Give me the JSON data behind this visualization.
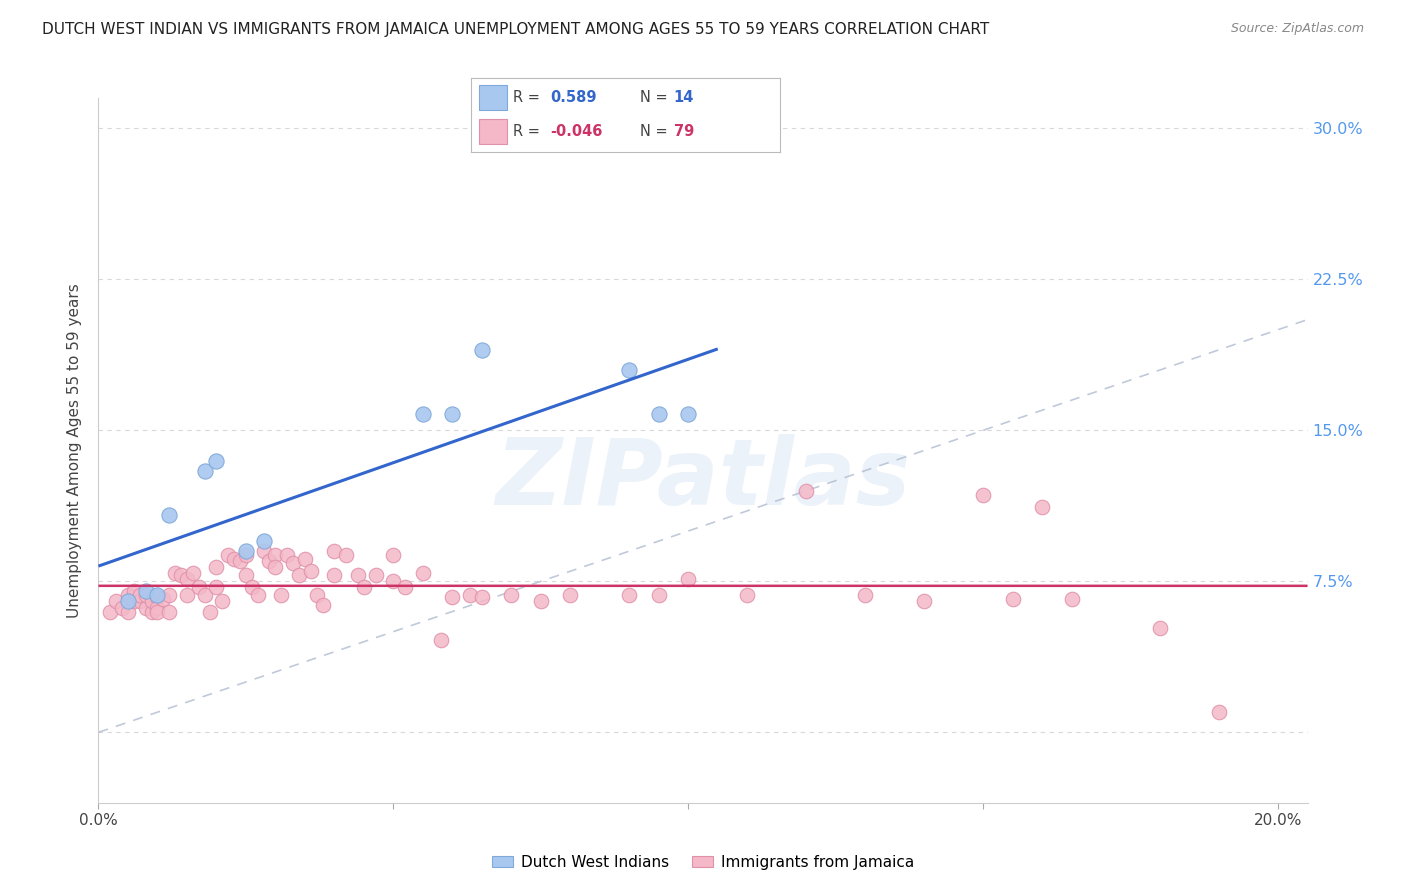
{
  "title": "DUTCH WEST INDIAN VS IMMIGRANTS FROM JAMAICA UNEMPLOYMENT AMONG AGES 55 TO 59 YEARS CORRELATION CHART",
  "source": "Source: ZipAtlas.com",
  "ylabel": "Unemployment Among Ages 55 to 59 years",
  "xlim": [
    0.0,
    0.205
  ],
  "ylim": [
    -0.035,
    0.315
  ],
  "yticks": [
    0.0,
    0.075,
    0.15,
    0.225,
    0.3
  ],
  "ytick_labels": [
    "",
    "7.5%",
    "15.0%",
    "22.5%",
    "30.0%"
  ],
  "xticks": [
    0.0,
    0.05,
    0.1,
    0.15,
    0.2
  ],
  "xtick_labels": [
    "0.0%",
    "",
    "",
    "",
    "20.0%"
  ],
  "blue_color": "#a8c8f0",
  "blue_edge": "#80a8d8",
  "blue_line_color": "#3366cc",
  "pink_color": "#f4b8c8",
  "pink_edge": "#e090a8",
  "pink_line_color": "#cc3366",
  "diag_color": "#b0bcd0",
  "bg_color": "#ffffff",
  "grid_color": "#d8d8d8",
  "right_label_color": "#5599ee",
  "blue_r": "0.589",
  "blue_n": "14",
  "pink_r": "-0.046",
  "pink_n": "79",
  "blue_x": [
    0.005,
    0.008,
    0.01,
    0.012,
    0.018,
    0.02,
    0.025,
    0.028,
    0.055,
    0.06,
    0.065,
    0.09,
    0.095,
    0.1
  ],
  "blue_y": [
    0.065,
    0.07,
    0.068,
    0.108,
    0.13,
    0.135,
    0.09,
    0.095,
    0.158,
    0.158,
    0.19,
    0.18,
    0.158,
    0.158
  ],
  "pink_x": [
    0.002,
    0.003,
    0.004,
    0.005,
    0.005,
    0.006,
    0.006,
    0.007,
    0.007,
    0.008,
    0.008,
    0.009,
    0.009,
    0.01,
    0.01,
    0.01,
    0.011,
    0.012,
    0.012,
    0.013,
    0.014,
    0.015,
    0.015,
    0.016,
    0.017,
    0.018,
    0.019,
    0.02,
    0.02,
    0.021,
    0.022,
    0.023,
    0.024,
    0.025,
    0.025,
    0.026,
    0.027,
    0.028,
    0.029,
    0.03,
    0.03,
    0.031,
    0.032,
    0.033,
    0.034,
    0.035,
    0.036,
    0.037,
    0.038,
    0.04,
    0.04,
    0.042,
    0.044,
    0.045,
    0.047,
    0.05,
    0.05,
    0.052,
    0.055,
    0.058,
    0.06,
    0.063,
    0.065,
    0.07,
    0.075,
    0.08,
    0.09,
    0.095,
    0.1,
    0.11,
    0.12,
    0.13,
    0.14,
    0.15,
    0.155,
    0.16,
    0.165,
    0.18,
    0.19
  ],
  "pink_y": [
    0.06,
    0.065,
    0.062,
    0.06,
    0.068,
    0.065,
    0.07,
    0.065,
    0.068,
    0.062,
    0.068,
    0.06,
    0.065,
    0.067,
    0.062,
    0.06,
    0.066,
    0.068,
    0.06,
    0.079,
    0.078,
    0.076,
    0.068,
    0.079,
    0.072,
    0.068,
    0.06,
    0.082,
    0.072,
    0.065,
    0.088,
    0.086,
    0.085,
    0.088,
    0.078,
    0.072,
    0.068,
    0.09,
    0.085,
    0.088,
    0.082,
    0.068,
    0.088,
    0.084,
    0.078,
    0.086,
    0.08,
    0.068,
    0.063,
    0.09,
    0.078,
    0.088,
    0.078,
    0.072,
    0.078,
    0.088,
    0.075,
    0.072,
    0.079,
    0.046,
    0.067,
    0.068,
    0.067,
    0.068,
    0.065,
    0.068,
    0.068,
    0.068,
    0.076,
    0.068,
    0.12,
    0.068,
    0.065,
    0.118,
    0.066,
    0.112,
    0.066,
    0.052,
    0.01
  ],
  "watermark_text": "ZIPatlas",
  "watermark_color": "#dce8f5"
}
